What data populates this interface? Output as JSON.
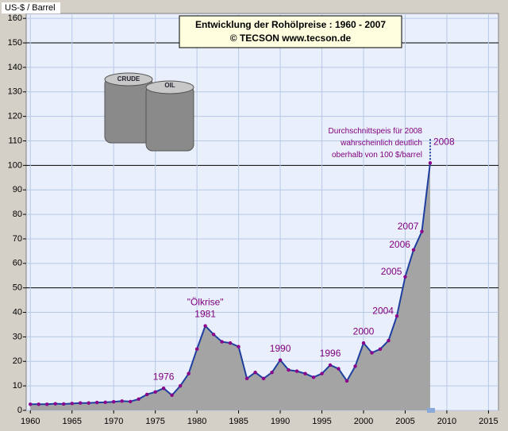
{
  "chart_data": {
    "type": "area",
    "title": "Entwicklung der Rohölpreise :   1960 - 2007",
    "subtitle": "© TECSON        www.tecson.de",
    "y_label": "US-$ / Barrel",
    "x": [
      1960,
      1961,
      1962,
      1963,
      1964,
      1965,
      1966,
      1967,
      1968,
      1969,
      1970,
      1971,
      1972,
      1973,
      1974,
      1975,
      1976,
      1977,
      1978,
      1979,
      1980,
      1981,
      1982,
      1983,
      1984,
      1985,
      1986,
      1987,
      1988,
      1989,
      1990,
      1991,
      1992,
      1993,
      1994,
      1995,
      1996,
      1997,
      1998,
      1999,
      2000,
      2001,
      2002,
      2003,
      2004,
      2005,
      2006,
      2007,
      2008
    ],
    "series": [
      {
        "name": "Rohölpreis",
        "color": "#1f3fa0",
        "fill": "#a4a4a4",
        "marker_color": "#8b008b",
        "values": [
          2.5,
          2.5,
          2.5,
          2.7,
          2.6,
          2.8,
          3,
          3,
          3.2,
          3.3,
          3.5,
          3.8,
          3.6,
          4.6,
          6.5,
          7.5,
          9,
          6.2,
          10,
          15,
          25,
          34.5,
          31,
          28,
          27.5,
          26,
          13,
          15.5,
          13,
          15.5,
          20.5,
          16.5,
          16,
          15,
          13.5,
          15,
          18.5,
          17,
          12,
          18,
          27.5,
          23.5,
          25,
          28.5,
          38.5,
          54.5,
          65.5,
          73,
          101
        ]
      }
    ],
    "xlim": [
      1959.5,
      2016.2
    ],
    "xticks": [
      1960,
      1965,
      1970,
      1975,
      1980,
      1985,
      1990,
      1995,
      2000,
      2005,
      2010,
      2015
    ],
    "ylim": [
      0,
      162
    ],
    "yticks": [
      0,
      10,
      20,
      30,
      40,
      50,
      60,
      70,
      80,
      90,
      100,
      110,
      120,
      130,
      140,
      150,
      160
    ],
    "grid": true,
    "year_labels": [
      "1976",
      "1981",
      "1990",
      "1996",
      "2000",
      "2004",
      "2005",
      "2006",
      "2007",
      "2008"
    ],
    "event_label": "\"Ölkrise\"",
    "note": [
      "Durchschnittspeis für 2008",
      "wahrscheinlich deutlich",
      "oberhalb von 100 $/barrel"
    ],
    "barrel_labels": [
      "CRUDE",
      "OIL"
    ]
  }
}
